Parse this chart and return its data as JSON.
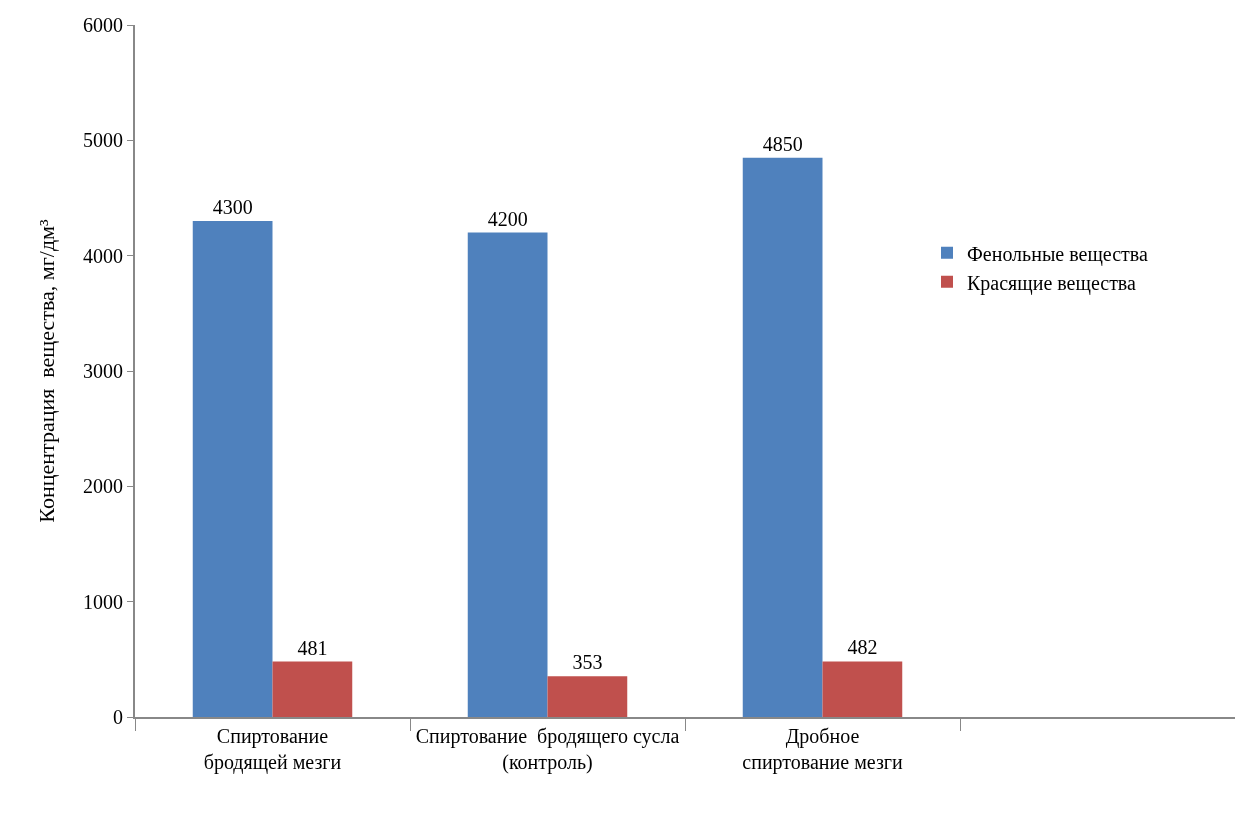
{
  "chart_data": {
    "type": "bar",
    "ylabel": "Концентрация  вещества, мг/дм³",
    "categories": [
      "Спиртование\nбродящей мезги",
      "Спиртование  бродящего сусла\n(контроль)",
      "Дробное\nспиртование мезги",
      null
    ],
    "series": [
      {
        "name": "Фенольные вещества",
        "color": "#4f81bd",
        "values": [
          4300,
          4200,
          4850,
          null
        ]
      },
      {
        "name": "Красящие вещества",
        "color": "#c0504d",
        "values": [
          481,
          353,
          482,
          null
        ]
      }
    ],
    "ylim": [
      0,
      6000
    ],
    "yticks": [
      0,
      1000,
      2000,
      3000,
      4000,
      5000,
      6000
    ],
    "grid": false,
    "legend": "right",
    "data_labels": true
  }
}
